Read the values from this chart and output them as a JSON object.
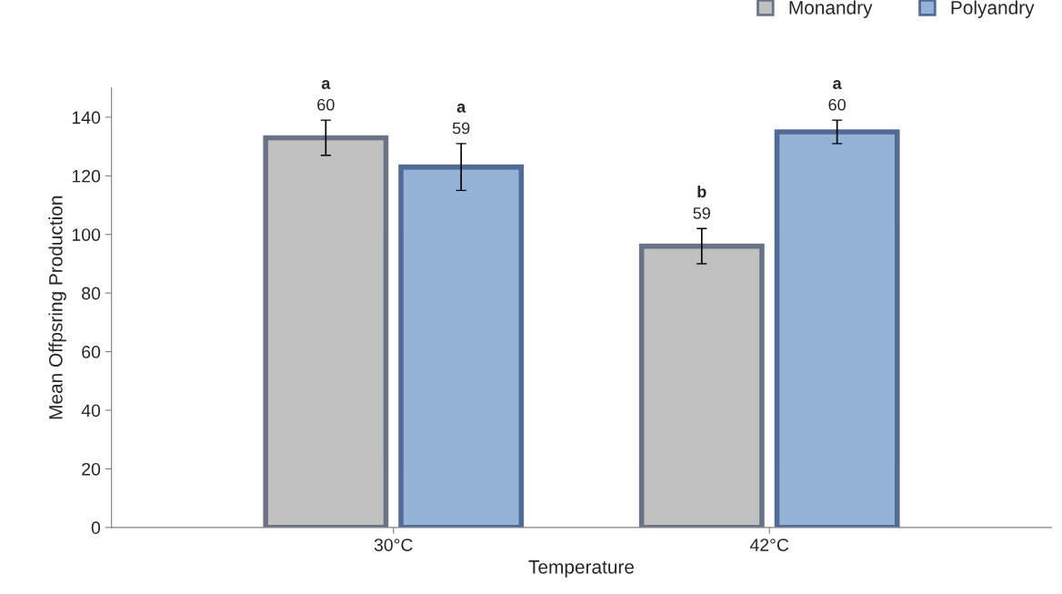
{
  "chart_data": {
    "type": "bar",
    "xlabel": "Temperature",
    "ylabel": "Mean Offpsring Production",
    "categories": [
      "30°C",
      "42°C"
    ],
    "series": [
      {
        "name": "Monandry",
        "color": "#c0c0c0",
        "values": [
          133,
          96
        ],
        "errors": [
          6,
          6
        ]
      },
      {
        "name": "Polyandry",
        "color": "#95b3d7",
        "values": [
          123,
          135
        ],
        "errors": [
          8,
          4
        ]
      }
    ],
    "annotations": [
      "a\n60",
      "b\n59",
      "a\n59",
      "a\n60"
    ],
    "ylim": [
      0,
      150
    ],
    "yticks": [
      0,
      20,
      40,
      60,
      80,
      100,
      120,
      140
    ],
    "grid": false,
    "legend": "top right"
  }
}
